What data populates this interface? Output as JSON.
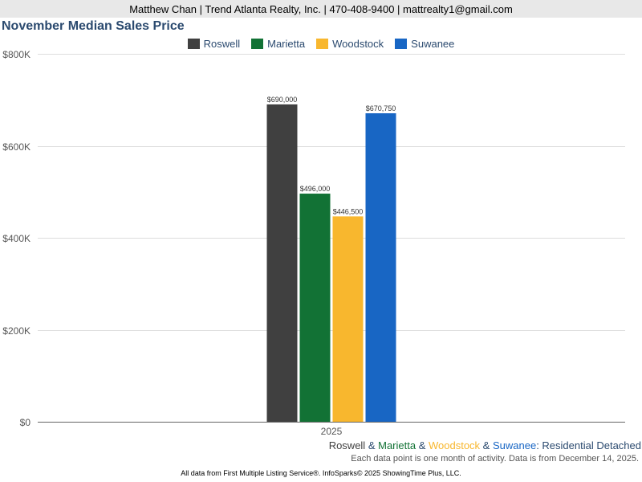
{
  "header": {
    "contact": "Matthew Chan | Trend Atlanta Realty, Inc. | 470-408-9400 | mattrealty1@gmail.com"
  },
  "chart_data": {
    "type": "bar",
    "title": "November Median Sales Price",
    "categories": [
      "2025"
    ],
    "series": [
      {
        "name": "Roswell",
        "values": [
          690000
        ],
        "label": "$690,000",
        "color": "#404040"
      },
      {
        "name": "Marietta",
        "values": [
          496000
        ],
        "label": "$496,000",
        "color": "#127235"
      },
      {
        "name": "Woodstock",
        "values": [
          446500
        ],
        "label": "$446,500",
        "color": "#f8b72e"
      },
      {
        "name": "Suwanee",
        "values": [
          670750
        ],
        "label": "$670,750",
        "color": "#1866c4"
      }
    ],
    "ylim": [
      0,
      800000
    ],
    "yticks": [
      "$0",
      "$200K",
      "$400K",
      "$600K",
      "$800K"
    ],
    "grid": true,
    "legend": "top-center"
  },
  "subtitle": {
    "parts": [
      {
        "text": "Roswell",
        "color": "#404040"
      },
      {
        "text": " & ",
        "color": "#2b4a6f"
      },
      {
        "text": "Marietta",
        "color": "#127235"
      },
      {
        "text": " & ",
        "color": "#2b4a6f"
      },
      {
        "text": "Woodstock",
        "color": "#f8b72e"
      },
      {
        "text": " & ",
        "color": "#2b4a6f"
      },
      {
        "text": "Suwanee",
        "color": "#1866c4"
      },
      {
        "text": ": Residential Detached",
        "color": "#2b4a6f"
      }
    ]
  },
  "note": "Each data point is one month of activity. Data is from December 14, 2025.",
  "footer": "All data from First Multiple Listing Service®. InfoSparks© 2025 ShowingTime Plus, LLC."
}
